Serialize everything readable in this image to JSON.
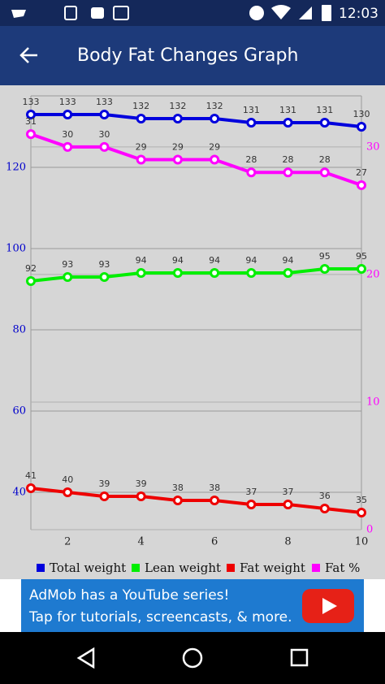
{
  "status_bar": {
    "time": "12:03"
  },
  "app_bar": {
    "title": "Body Fat Changes Graph"
  },
  "chart_data": {
    "type": "line",
    "x": [
      1,
      2,
      3,
      4,
      5,
      6,
      7,
      8,
      9,
      10
    ],
    "xlim": [
      1,
      10
    ],
    "xticks": [
      2,
      4,
      6,
      8,
      10
    ],
    "ylim": [
      30.8,
      137.6
    ],
    "yticks": [
      40,
      60,
      80,
      100,
      120
    ],
    "y2lim": [
      0,
      34
    ],
    "y2ticks": [
      0,
      10,
      20,
      30
    ],
    "grid": true,
    "series": [
      {
        "name": "Total weight",
        "color": "#0000dd",
        "values": [
          133,
          133,
          133,
          132,
          132,
          132,
          131,
          131,
          131,
          130
        ]
      },
      {
        "name": "Lean weight",
        "color": "#00ee00",
        "values": [
          92,
          93,
          93,
          94,
          94,
          94,
          94,
          94,
          95,
          95
        ]
      },
      {
        "name": "Fat weight",
        "color": "#ee0000",
        "values": [
          41,
          40,
          39,
          39,
          38,
          38,
          37,
          37,
          36,
          35
        ]
      },
      {
        "name": "Fat %",
        "color": "#ff00ff",
        "axis": "y2",
        "values": [
          31,
          30,
          30,
          29,
          29,
          29,
          28,
          28,
          28,
          27
        ]
      }
    ]
  },
  "ad": {
    "line1": "AdMob has a YouTube series!",
    "line2": "Tap for tutorials, screencasts, & more."
  }
}
